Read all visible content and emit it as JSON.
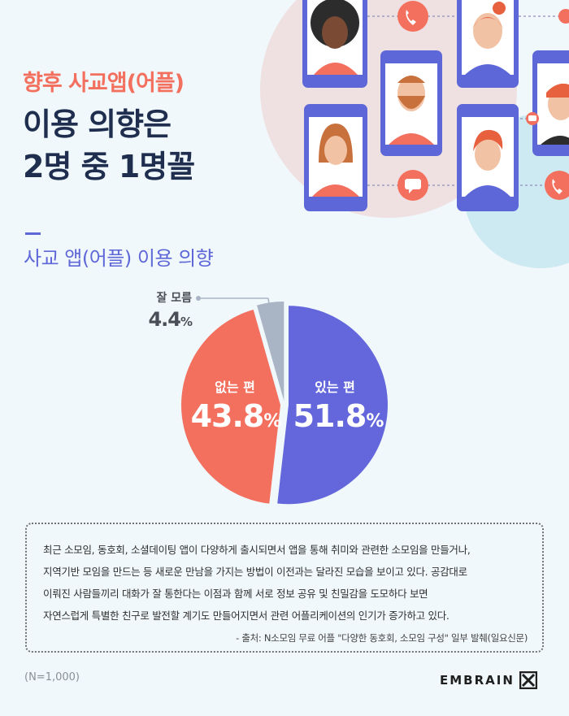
{
  "headline": {
    "line1": "향후 사교앱(어플)",
    "line2": "이용 의향은",
    "line3": "2명 중 1명꼴"
  },
  "section_title": "사교 앱(어플) 이용 의향",
  "chart_data": {
    "type": "pie",
    "slices": [
      {
        "label": "있는 편",
        "value": 51.8,
        "display": "51.8",
        "color": "#6367db"
      },
      {
        "label": "없는 편",
        "value": 43.8,
        "display": "43.8",
        "color": "#f36f5e"
      },
      {
        "label": "잘 모름",
        "value": 4.4,
        "display": "4.4",
        "color": "#a9b5c4"
      }
    ],
    "unit": "%"
  },
  "note": {
    "line1": "최근 소모임, 동호회, 소셜데이팅 앱이 다양하게 출시되면서 앱을 통해 취미와 관련한 소모임을 만들거나,",
    "line2": "지역기반 모임을 만드는 등 새로운 만남을 가지는 방법이 이전과는 달라진 모습을 보이고 있다. 공감대로",
    "line3": "이뤄진 사람들끼리 대화가 잘 통한다는 이점과 함께 서로 정보 공유 및 친밀감을 도모하다 보면",
    "line4": "자연스럽게 특별한 친구로 발전할 계기도 만들어지면서 관련 어플리케이션의 인기가 증가하고 있다.",
    "source": "- 출처: N소모임 무료 어플 \"다양한 동호회, 소모임 구성\" 일부 발췌(일요신문)"
  },
  "sample_size": "(N=1,000)",
  "brand": "EMBRAIN"
}
